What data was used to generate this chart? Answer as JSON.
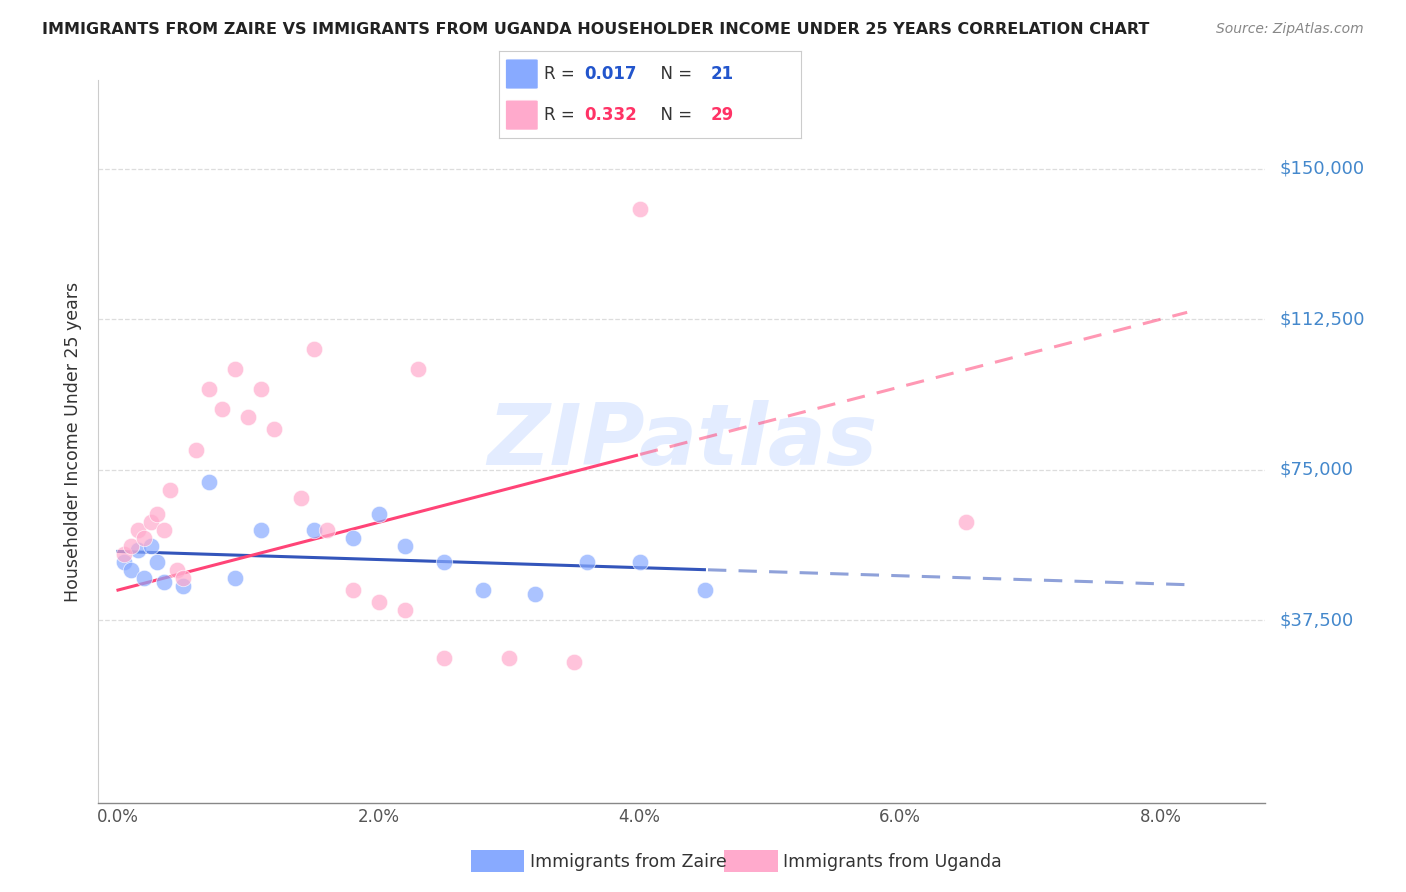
{
  "title": "IMMIGRANTS FROM ZAIRE VS IMMIGRANTS FROM UGANDA HOUSEHOLDER INCOME UNDER 25 YEARS CORRELATION CHART",
  "source": "Source: ZipAtlas.com",
  "ylabel": "Householder Income Under 25 years",
  "xtick_labels": [
    "0.0%",
    "2.0%",
    "4.0%",
    "6.0%",
    "8.0%"
  ],
  "xtick_vals": [
    0.0,
    2.0,
    4.0,
    6.0,
    8.0
  ],
  "ytick_labels": [
    "$37,500",
    "$75,000",
    "$112,500",
    "$150,000"
  ],
  "ytick_vals": [
    37500,
    75000,
    112500,
    150000
  ],
  "ylim": [
    -8000,
    172000
  ],
  "xlim": [
    -0.15,
    8.8
  ],
  "zaire_color": "#88aaff",
  "uganda_color": "#ffaacc",
  "zaire_line_color": "#3355bb",
  "uganda_line_color": "#ff4477",
  "watermark_color": "#ccdeff",
  "watermark_text": "ZIPatlas",
  "legend_zaire_R": "0.017",
  "legend_zaire_N": "21",
  "legend_uganda_R": "0.332",
  "legend_uganda_N": "29",
  "zaire_x": [
    0.05,
    0.1,
    0.15,
    0.2,
    0.25,
    0.3,
    0.35,
    0.5,
    0.7,
    0.9,
    1.1,
    1.5,
    1.8,
    2.0,
    2.2,
    2.5,
    2.8,
    3.2,
    3.6,
    4.0,
    4.5
  ],
  "zaire_y": [
    52000,
    50000,
    55000,
    48000,
    56000,
    52000,
    47000,
    46000,
    72000,
    48000,
    60000,
    60000,
    58000,
    64000,
    56000,
    52000,
    45000,
    44000,
    52000,
    52000,
    45000
  ],
  "uganda_x": [
    0.05,
    0.1,
    0.15,
    0.2,
    0.25,
    0.3,
    0.35,
    0.4,
    0.45,
    0.5,
    0.6,
    0.7,
    0.8,
    0.9,
    1.0,
    1.1,
    1.2,
    1.4,
    1.6,
    1.8,
    2.0,
    2.2,
    2.5,
    3.0,
    3.5,
    4.0,
    6.5,
    1.5,
    2.3
  ],
  "uganda_y": [
    54000,
    56000,
    60000,
    58000,
    62000,
    64000,
    60000,
    70000,
    50000,
    48000,
    80000,
    95000,
    90000,
    100000,
    88000,
    95000,
    85000,
    68000,
    60000,
    45000,
    42000,
    40000,
    28000,
    28000,
    27000,
    140000,
    62000,
    105000,
    100000
  ],
  "background_color": "#ffffff",
  "grid_color": "#dddddd",
  "title_color": "#222222",
  "source_color": "#888888",
  "axis_label_color": "#333333",
  "tick_color": "#555555",
  "right_label_color": "#4488cc",
  "legend_border_color": "#cccccc",
  "zaire_line_end_x": 4.5,
  "uganda_line_end_x": 4.0
}
